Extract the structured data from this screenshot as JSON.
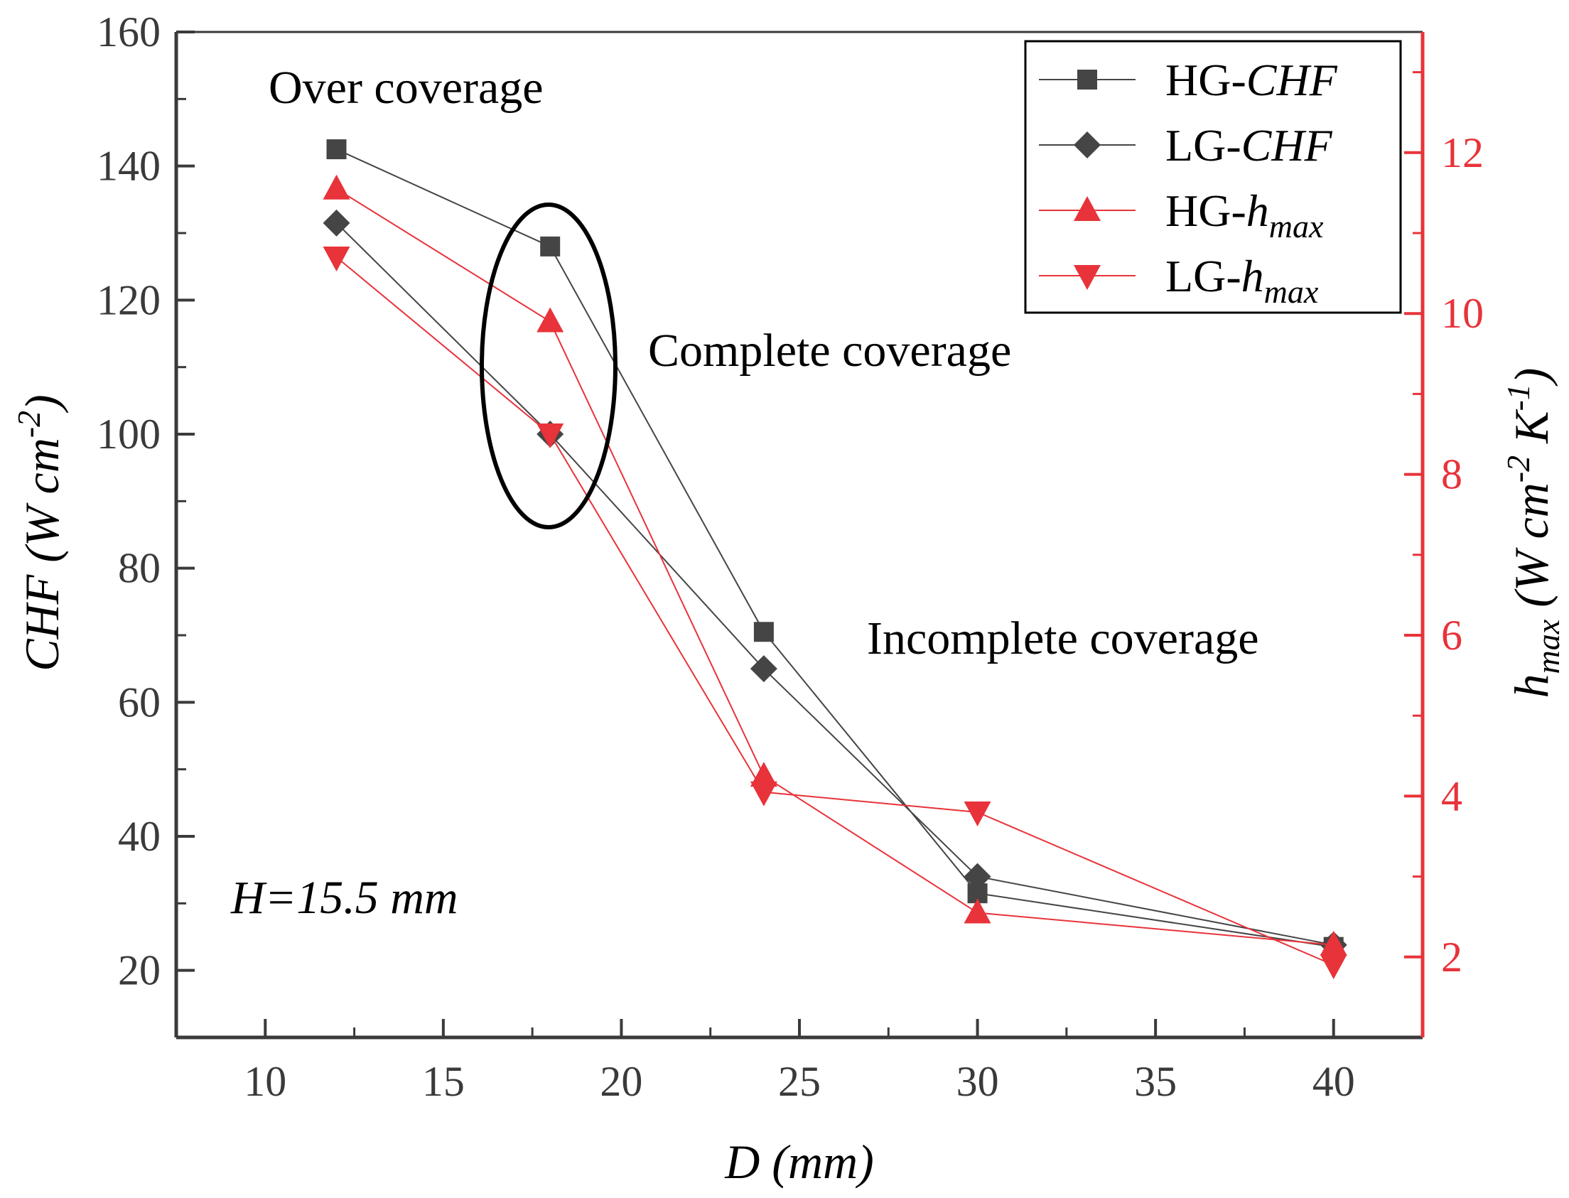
{
  "chart_data": {
    "type": "line",
    "x": [
      12,
      18,
      24,
      30,
      40
    ],
    "xlabel": "D (mm)",
    "xlim": [
      7.5,
      42.5
    ],
    "xticks": [
      10,
      15,
      20,
      25,
      30,
      35,
      40
    ],
    "ylabel_left": {
      "main": "CHF",
      "unit": "(W cm",
      "sup": "-2",
      "close": ")"
    },
    "ylabel_right": {
      "main": "h",
      "sub": "max",
      "unit": " (W cm",
      "sup1": "-2",
      "mid": " K",
      "sup2": "-1",
      "close": ")"
    },
    "ylim_left": [
      10,
      160
    ],
    "yticks_left": [
      20,
      40,
      60,
      80,
      100,
      120,
      140,
      160
    ],
    "ylim_right": [
      1,
      13.5
    ],
    "yticks_right": [
      2,
      4,
      6,
      8,
      10,
      12
    ],
    "series": [
      {
        "name": "HG-",
        "name_italic": "CHF",
        "axis": "left",
        "marker": "square",
        "color": "#454545",
        "values": [
          142.5,
          128,
          70.5,
          31.5,
          23.5
        ]
      },
      {
        "name": "LG-",
        "name_italic": "CHF",
        "axis": "left",
        "marker": "diamond",
        "color": "#454545",
        "values": [
          131.5,
          100,
          65,
          34,
          23.8
        ]
      },
      {
        "name": "HG-",
        "name_italic": "h",
        "name_sub": "max",
        "axis": "right",
        "marker": "triangle-up",
        "color": "#e8333a",
        "values": [
          11.55,
          9.9,
          4.25,
          2.55,
          2.15
        ]
      },
      {
        "name": "LG-",
        "name_italic": "h",
        "name_sub": "max",
        "axis": "right",
        "marker": "triangle-down",
        "color": "#e8333a",
        "values": [
          10.7,
          8.5,
          4.05,
          3.8,
          1.9
        ]
      }
    ],
    "annotations": {
      "over": "Over coverage",
      "complete": "Complete coverage",
      "incomplete": "Incomplete coverage",
      "height": "H=15.5 mm"
    },
    "legend_position": "top-right"
  }
}
